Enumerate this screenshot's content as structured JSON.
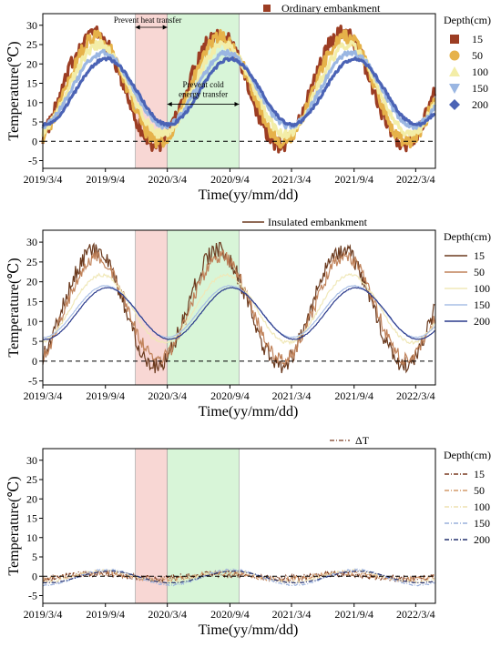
{
  "figure": {
    "colors": {
      "shade_heat": "#f8d7d4",
      "shade_cold": "#d8f5d8",
      "zero_line": "#000000"
    }
  },
  "chart_data": [
    {
      "type": "line",
      "panel": "ordinary",
      "title_legend": "Ordinary embankment",
      "xlabel": "Time(yy/mm/dd)",
      "ylabel": "Temperature(℃)",
      "legend_title": "Depth(cm)",
      "legend_placement": "right",
      "legend_style": "markers",
      "x_tick_labels": [
        "2019/3/4",
        "2019/9/4",
        "2020/3/4",
        "2020/9/4",
        "2021/3/4",
        "2021/9/4",
        "2022/3/4"
      ],
      "x_range": [
        "2019/3/4",
        "2022/5/1"
      ],
      "ylim": [
        -7,
        33
      ],
      "yticks": [
        -5,
        0,
        5,
        10,
        15,
        20,
        25,
        30
      ],
      "zero_reference_line": true,
      "annotations": [
        {
          "text": "Prevent heat transfer",
          "from": "2019/12/1",
          "to": "2020/3/4"
        },
        {
          "text": "Prevent cold energy transfer",
          "text_lines": [
            "Prevent cold",
            "energy transfer"
          ],
          "from": "2020/3/4",
          "to": "2020/10/1"
        }
      ],
      "shaded_periods": [
        {
          "from": "2019/12/1",
          "to": "2020/3/4",
          "kind": "heat"
        },
        {
          "from": "2020/3/4",
          "to": "2020/10/1",
          "kind": "cold"
        }
      ],
      "series": [
        {
          "name": "15",
          "color": "#9c3d23",
          "marker": "square",
          "mean": 13.6,
          "amplitude": 14.5,
          "phase_lag_days": 0,
          "noise": 2.0
        },
        {
          "name": "50",
          "color": "#e6b24a",
          "marker": "circle",
          "mean": 13.5,
          "amplitude": 13.5,
          "phase_lag_days": 8,
          "noise": 1.7
        },
        {
          "name": "100",
          "color": "#f3eda7",
          "marker": "triangle",
          "mean": 13.4,
          "amplitude": 11.5,
          "phase_lag_days": 16,
          "noise": 1.2
        },
        {
          "name": "150",
          "color": "#9ab6e2",
          "marker": "triangle-down",
          "mean": 13.4,
          "amplitude": 9.5,
          "phase_lag_days": 26,
          "noise": 0.7
        },
        {
          "name": "200",
          "color": "#4b63b5",
          "marker": "diamond",
          "mean": 12.8,
          "amplitude": 8.5,
          "phase_lag_days": 36,
          "noise": 0.4
        }
      ]
    },
    {
      "type": "line",
      "panel": "insulated",
      "title_legend": "Insulated embankment",
      "xlabel": "Time(yy/mm/dd)",
      "ylabel": "Temperature(℃)",
      "legend_title": "Depth(cm)",
      "legend_placement": "right",
      "legend_style": "lines",
      "x_tick_labels": [
        "2019/3/4",
        "2019/9/4",
        "2020/3/4",
        "2020/9/4",
        "2021/3/4",
        "2021/9/4",
        "2022/3/4"
      ],
      "x_range": [
        "2019/3/4",
        "2022/5/1"
      ],
      "ylim": [
        -6,
        33
      ],
      "yticks": [
        -5,
        0,
        5,
        10,
        15,
        20,
        25,
        30
      ],
      "zero_reference_line": true,
      "shaded_periods": [
        {
          "from": "2019/12/1",
          "to": "2020/3/4",
          "kind": "heat"
        },
        {
          "from": "2020/3/4",
          "to": "2020/10/1",
          "kind": "cold"
        }
      ],
      "series": [
        {
          "name": "15",
          "color": "#6b3a1e",
          "mean": 13.5,
          "amplitude": 14.5,
          "phase_lag_days": 0,
          "noise": 2.2
        },
        {
          "name": "50",
          "color": "#c0825a",
          "mean": 13.4,
          "amplitude": 13.0,
          "phase_lag_days": 8,
          "noise": 1.7
        },
        {
          "name": "100",
          "color": "#f0e8b8",
          "mean": 13.2,
          "amplitude": 8.5,
          "phase_lag_days": 22,
          "noise": 0.4
        },
        {
          "name": "150",
          "color": "#a9bfe6",
          "mean": 12.5,
          "amplitude": 6.5,
          "phase_lag_days": 34,
          "noise": 0.1
        },
        {
          "name": "200",
          "color": "#2a3a8c",
          "mean": 12.0,
          "amplitude": 6.5,
          "phase_lag_days": 40,
          "noise": 0.1
        }
      ]
    },
    {
      "type": "line",
      "panel": "difference",
      "title_legend": "ΔT",
      "xlabel": "Time(yy/mm/dd)",
      "ylabel": "Temperature(℃)",
      "legend_title": "Depth(cm)",
      "legend_placement": "right",
      "legend_style": "dash-dot lines",
      "x_tick_labels": [
        "2019/3/4",
        "2019/9/4",
        "2020/3/4",
        "2020/9/4",
        "2021/3/4",
        "2021/9/4",
        "2022/3/4"
      ],
      "x_range": [
        "2019/3/4",
        "2022/5/1"
      ],
      "ylim": [
        -7,
        33
      ],
      "yticks": [
        -5,
        0,
        5,
        10,
        15,
        20,
        25,
        30
      ],
      "zero_reference_line": true,
      "shaded_periods": [
        {
          "from": "2019/12/1",
          "to": "2020/3/4",
          "kind": "heat"
        },
        {
          "from": "2020/3/4",
          "to": "2020/10/1",
          "kind": "cold"
        }
      ],
      "series": [
        {
          "name": "15",
          "color": "#7a3a20",
          "mean": 0.0,
          "amplitude": 0.6,
          "phase_lag_days": 0,
          "noise": 0.8
        },
        {
          "name": "50",
          "color": "#d49a6a",
          "mean": 0.0,
          "amplitude": 0.8,
          "phase_lag_days": 10,
          "noise": 0.6
        },
        {
          "name": "100",
          "color": "#eee0b0",
          "mean": 0.0,
          "amplitude": 1.5,
          "phase_lag_days": 30,
          "noise": 0.3
        },
        {
          "name": "150",
          "color": "#9ab0dc",
          "mean": -0.3,
          "amplitude": 2.0,
          "phase_lag_days": 40,
          "noise": 0.2
        },
        {
          "name": "200",
          "color": "#24306e",
          "mean": -0.2,
          "amplitude": 1.5,
          "phase_lag_days": 45,
          "noise": 0.1
        }
      ]
    }
  ]
}
